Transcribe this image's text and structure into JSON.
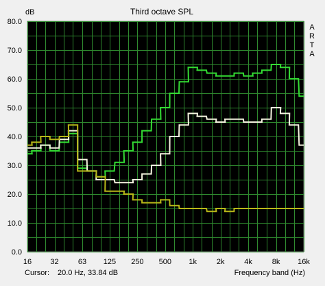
{
  "chart_data": {
    "type": "line",
    "title": "Third octave SPL",
    "ylabel": "dB",
    "xlabel": "Frequency band (Hz)",
    "watermark": "ARTA",
    "x_scale": "log",
    "ylim": [
      0,
      80
    ],
    "yticks": [
      "0.0",
      "10.0",
      "20.0",
      "30.0",
      "40.0",
      "50.0",
      "60.0",
      "70.0",
      "80.0"
    ],
    "xtick_labels": [
      "16",
      "32",
      "63",
      "125",
      "250",
      "500",
      "1k",
      "2k",
      "4k",
      "8k",
      "16k"
    ],
    "grid": true,
    "background": "#000000",
    "grid_color": "#2f8a2f",
    "bands": [
      16,
      20,
      25,
      31.5,
      40,
      50,
      63,
      80,
      100,
      125,
      160,
      200,
      250,
      315,
      400,
      500,
      630,
      800,
      1000,
      1250,
      1600,
      2000,
      2500,
      3150,
      4000,
      5000,
      6300,
      8000,
      10000,
      12500,
      16000
    ],
    "series": [
      {
        "color": "#33dd33",
        "values": [
          34,
          35,
          37,
          35,
          38,
          41,
          29,
          28,
          26,
          28,
          31,
          35,
          38,
          42,
          46,
          50,
          55,
          59,
          64,
          63,
          62,
          61,
          61,
          62,
          61,
          62,
          63,
          65,
          64,
          60,
          54
        ]
      },
      {
        "color": "#f5f5e0",
        "values": [
          36,
          36,
          37,
          36,
          39,
          42,
          32,
          28,
          25,
          25,
          24,
          24,
          25,
          27,
          30,
          34,
          40,
          44,
          48,
          47,
          46,
          45,
          46,
          46,
          45,
          45,
          46,
          50,
          48,
          44,
          37
        ]
      },
      {
        "color": "#b8b818",
        "values": [
          37,
          38,
          40,
          39,
          40,
          44,
          28,
          28,
          26,
          21,
          21,
          20,
          18,
          17,
          17,
          18,
          16,
          15,
          15,
          15,
          14,
          15,
          14,
          15,
          15,
          15,
          15,
          15,
          15,
          15,
          15
        ]
      }
    ]
  },
  "cursor": {
    "label": "Cursor:",
    "value": "20.0 Hz, 33.84 dB"
  }
}
